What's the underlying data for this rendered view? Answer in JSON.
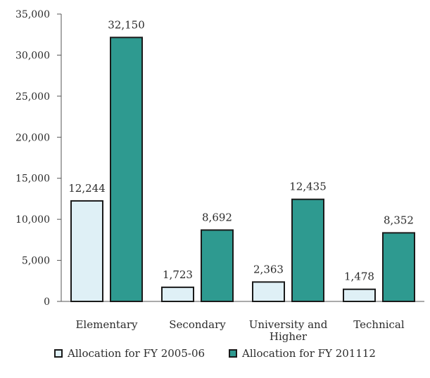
{
  "chart_data": {
    "type": "bar",
    "categories": [
      [
        "Elementary"
      ],
      [
        "Secondary"
      ],
      [
        "University and",
        "Higher"
      ],
      [
        "Technical"
      ]
    ],
    "series": [
      {
        "name": "Allocation for FY 2005-06",
        "values": [
          12244,
          1723,
          2363,
          1478
        ],
        "labels": [
          "12,244",
          "1,723",
          "2,363",
          "1,478"
        ],
        "color": "#dff0f6"
      },
      {
        "name": "Allocation for FY 201112",
        "values": [
          32150,
          8692,
          12435,
          8352
        ],
        "labels": [
          "32,150",
          "8,692",
          "12,435",
          "8,352"
        ],
        "color": "#2e9a90"
      }
    ],
    "ylim": [
      0,
      35000
    ],
    "yticks": [
      0,
      5000,
      10000,
      15000,
      20000,
      25000,
      30000,
      35000
    ],
    "ytick_labels": [
      "0",
      "5,000",
      "10,000",
      "15,000",
      "20,000",
      "25,000",
      "30,000",
      "35,000"
    ],
    "grid": false,
    "legend_position": "bottom"
  }
}
